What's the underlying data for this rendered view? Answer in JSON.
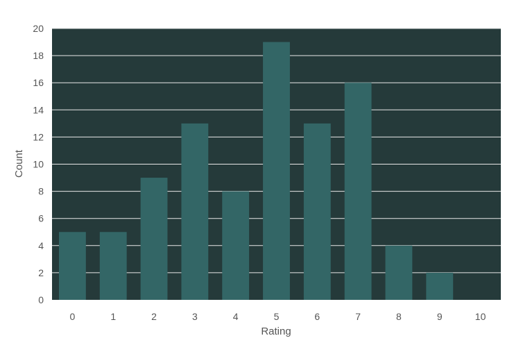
{
  "chart_data": {
    "type": "bar",
    "title": "",
    "xlabel": "Rating",
    "ylabel": "Count",
    "categories": [
      "0",
      "1",
      "2",
      "3",
      "4",
      "5",
      "6",
      "7",
      "8",
      "9",
      "10"
    ],
    "values": [
      5,
      5,
      9,
      13,
      8,
      19,
      13,
      16,
      4,
      2,
      0
    ],
    "ylim": [
      0,
      20
    ],
    "yticks": [
      "0",
      "2",
      "4",
      "6",
      "8",
      "10",
      "12",
      "14",
      "16",
      "18",
      "20"
    ],
    "grid": true,
    "legend": "none",
    "colors": {
      "background": "#ffffff",
      "plot_background": "#253a3a",
      "bar": "#336666",
      "grid": "#e8e8e8",
      "text": "#555555"
    }
  }
}
